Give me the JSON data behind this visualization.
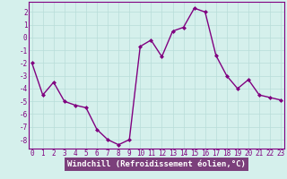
{
  "x": [
    0,
    1,
    2,
    3,
    4,
    5,
    6,
    7,
    8,
    9,
    10,
    11,
    12,
    13,
    14,
    15,
    16,
    17,
    18,
    19,
    20,
    21,
    22,
    23
  ],
  "y": [
    -2.0,
    -4.5,
    -3.5,
    -5.0,
    -5.3,
    -5.5,
    -7.2,
    -8.0,
    -8.4,
    -8.0,
    -0.7,
    -0.2,
    -1.5,
    0.5,
    0.8,
    2.3,
    2.0,
    -1.4,
    -3.0,
    -4.0,
    -3.3,
    -4.5,
    -4.7,
    -4.9
  ],
  "line_color": "#800080",
  "marker": "D",
  "markersize": 2.0,
  "linewidth": 1.0,
  "bg_color": "#d5f0ec",
  "grid_color": "#b8ddd8",
  "xlabel": "Windchill (Refroidissement éolien,°C)",
  "xlabel_bg": "#7b3f7b",
  "xlabel_color": "#ffffff",
  "xlabel_fontsize": 6.5,
  "ytick_labels": [
    "2",
    "1",
    "0",
    "-1",
    "-2",
    "-3",
    "-4",
    "-5",
    "-6",
    "-7",
    "-8"
  ],
  "ytick_values": [
    2,
    1,
    0,
    -1,
    -2,
    -3,
    -4,
    -5,
    -6,
    -7,
    -8
  ],
  "xticks": [
    0,
    1,
    2,
    3,
    4,
    5,
    6,
    7,
    8,
    9,
    10,
    11,
    12,
    13,
    14,
    15,
    16,
    17,
    18,
    19,
    20,
    21,
    22,
    23
  ],
  "ylim": [
    -8.7,
    2.8
  ],
  "xlim": [
    -0.3,
    23.3
  ],
  "tick_fontsize": 5.5,
  "tick_color": "#800080",
  "spine_color": "#800080",
  "spine_bottom_color": "#7b3f7b"
}
